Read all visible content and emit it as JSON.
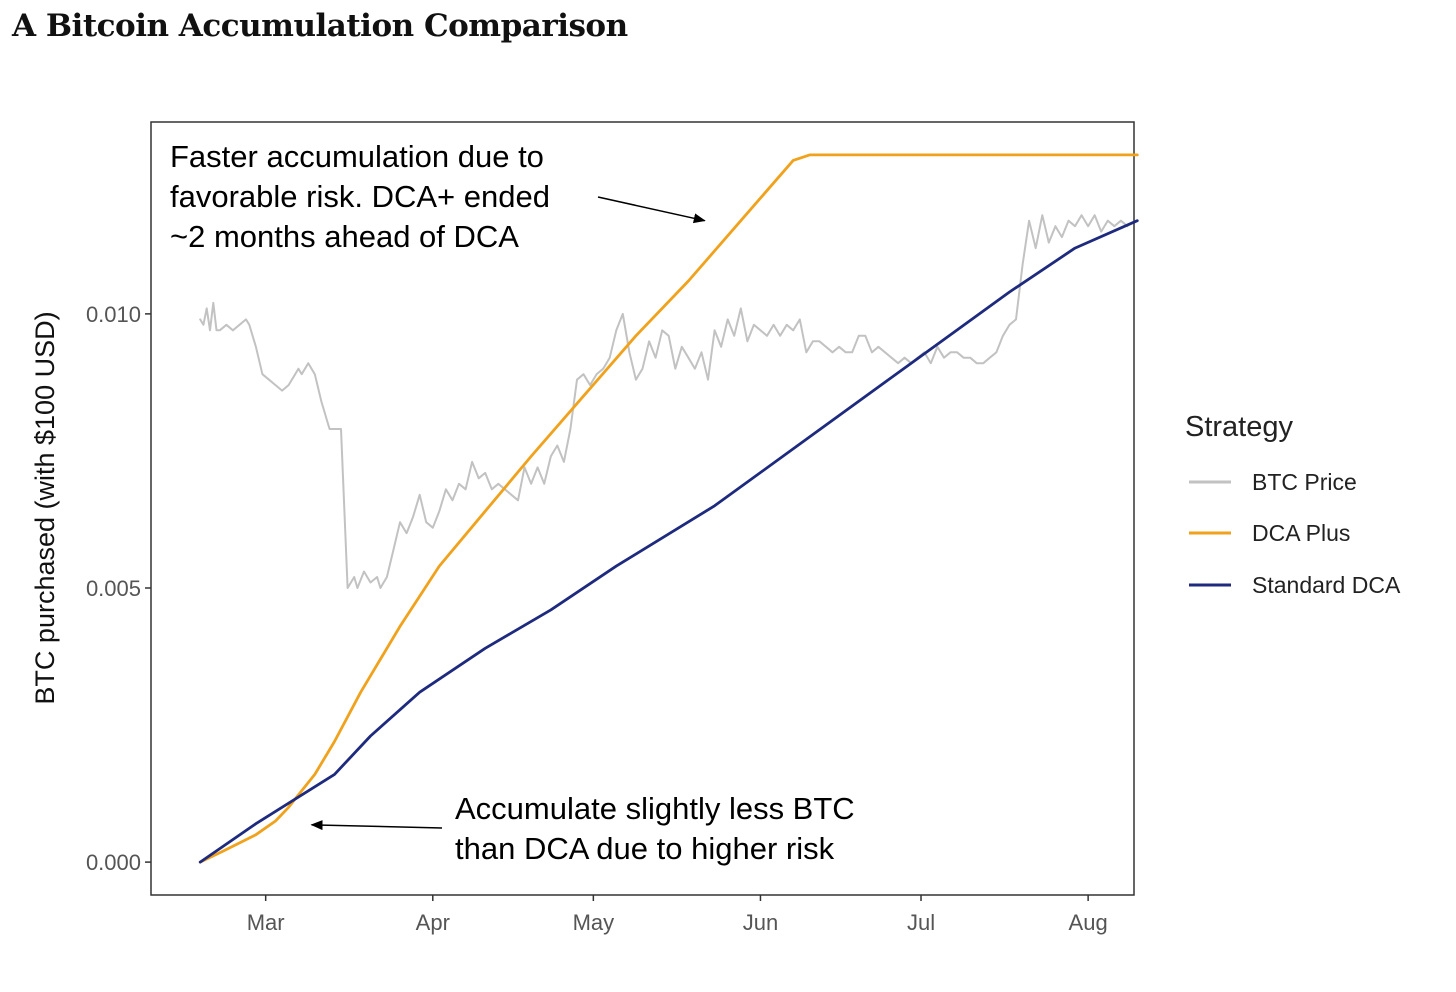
{
  "title": "A Bitcoin Accumulation Comparison",
  "chart_data": {
    "type": "line",
    "xlabel": "",
    "ylabel": "BTC purchased (with $100 USD)",
    "xlim": [
      -12,
      288
    ],
    "ylim": [
      -0.0006,
      0.0135
    ],
    "x_ticks": [
      {
        "value": 23,
        "label": "Mar"
      },
      {
        "value": 74,
        "label": "Apr"
      },
      {
        "value": 123,
        "label": "May"
      },
      {
        "value": 174,
        "label": "Jun"
      },
      {
        "value": 223,
        "label": "Jul"
      },
      {
        "value": 274,
        "label": "Aug"
      }
    ],
    "y_ticks": [
      {
        "value": 0,
        "label": "0.000"
      },
      {
        "value": 0.005,
        "label": "0.005"
      },
      {
        "value": 0.01,
        "label": "0.010"
      }
    ],
    "legend": {
      "title": "Strategy",
      "position": "right",
      "entries": [
        {
          "name": "BTC Price",
          "color": "#c2c2c2"
        },
        {
          "name": "DCA Plus",
          "color": "#f0a21c"
        },
        {
          "name": "Standard DCA",
          "color": "#1d2a7e"
        }
      ]
    },
    "series": [
      {
        "name": "BTC Price",
        "color": "#c2c2c2",
        "x": [
          3,
          4,
          5,
          6,
          7,
          8,
          9,
          11,
          13,
          15,
          17,
          18,
          20,
          22,
          24,
          26,
          28,
          30,
          32,
          33,
          34,
          36,
          38,
          40,
          41,
          42,
          42.5,
          43,
          44,
          45,
          46,
          48,
          50,
          51,
          53,
          55,
          57,
          58,
          60,
          62,
          64,
          66,
          68,
          70,
          72,
          74,
          76,
          78,
          80,
          82,
          84,
          86,
          88,
          90,
          92,
          94,
          96,
          98,
          100,
          102,
          104,
          106,
          108,
          110,
          112,
          114,
          116,
          118,
          120,
          122,
          124,
          126,
          128,
          130,
          132,
          134,
          136,
          138,
          140,
          142,
          144,
          146,
          148,
          150,
          152,
          154,
          156,
          158,
          160,
          162,
          164,
          166,
          168,
          170,
          172,
          174,
          176,
          178,
          180,
          182,
          184,
          186,
          188,
          190,
          192,
          194,
          196,
          198,
          200,
          202,
          204,
          206,
          208,
          210,
          212,
          214,
          216,
          218,
          220,
          222,
          224,
          226,
          228,
          230,
          232,
          234,
          236,
          238,
          240,
          242,
          244,
          246,
          248,
          250,
          252,
          254,
          256,
          258,
          260,
          262,
          264,
          266,
          268,
          270,
          272,
          274,
          276,
          278,
          280,
          282,
          284,
          286
        ],
        "values": [
          0.0099,
          0.0098,
          0.0101,
          0.0097,
          0.0102,
          0.0097,
          0.0097,
          0.0098,
          0.0097,
          0.0098,
          0.0099,
          0.0098,
          0.0094,
          0.0089,
          0.0088,
          0.0087,
          0.0086,
          0.0087,
          0.0089,
          0.009,
          0.0089,
          0.0091,
          0.0089,
          0.0084,
          0.0082,
          0.008,
          0.0079,
          0.0079,
          0.0079,
          0.0079,
          0.0079,
          0.005,
          0.0052,
          0.005,
          0.0053,
          0.0051,
          0.0052,
          0.005,
          0.0052,
          0.0057,
          0.0062,
          0.006,
          0.0063,
          0.0067,
          0.0062,
          0.0061,
          0.0064,
          0.0068,
          0.0066,
          0.0069,
          0.0068,
          0.0073,
          0.007,
          0.0071,
          0.0068,
          0.0069,
          0.0068,
          0.0067,
          0.0066,
          0.0072,
          0.0069,
          0.0072,
          0.0069,
          0.0074,
          0.0076,
          0.0073,
          0.0079,
          0.0088,
          0.0089,
          0.0087,
          0.0089,
          0.009,
          0.0092,
          0.0097,
          0.01,
          0.0093,
          0.0088,
          0.009,
          0.0095,
          0.0092,
          0.0097,
          0.0096,
          0.009,
          0.0094,
          0.0092,
          0.009,
          0.0093,
          0.0088,
          0.0097,
          0.0094,
          0.0099,
          0.0096,
          0.0101,
          0.0095,
          0.0098,
          0.0097,
          0.0096,
          0.0098,
          0.0096,
          0.0098,
          0.0097,
          0.0099,
          0.0093,
          0.0095,
          0.0095,
          0.0094,
          0.0093,
          0.0094,
          0.0093,
          0.0093,
          0.0096,
          0.0096,
          0.0093,
          0.0094,
          0.0093,
          0.0092,
          0.0091,
          0.0092,
          0.0091,
          0.0092,
          0.0093,
          0.0091,
          0.0094,
          0.0092,
          0.0093,
          0.0093,
          0.0092,
          0.0092,
          0.0091,
          0.0091,
          0.0092,
          0.0093,
          0.0096,
          0.0098,
          0.0099,
          0.0109,
          0.0117,
          0.0112,
          0.0118,
          0.0113,
          0.0116,
          0.0114,
          0.0117,
          0.0116,
          0.0118,
          0.0116,
          0.0118,
          0.0115,
          0.0117,
          0.0116,
          0.0117,
          0.0116
        ],
        "sampled": true
      },
      {
        "name": "DCA Plus",
        "color": "#f0a21c",
        "x": [
          3,
          10,
          20,
          26,
          30,
          34,
          38,
          44,
          52,
          64,
          76,
          90,
          104,
          120,
          136,
          152,
          168,
          184,
          189,
          210,
          240,
          270,
          289
        ],
        "values": [
          0.0,
          0.0002,
          0.0005,
          0.00075,
          0.001,
          0.0013,
          0.0016,
          0.0022,
          0.0031,
          0.0043,
          0.0054,
          0.0064,
          0.0074,
          0.0085,
          0.0096,
          0.0106,
          0.0117,
          0.0128,
          0.0129,
          0.0129,
          0.0129,
          0.0129,
          0.0129
        ]
      },
      {
        "name": "Standard DCA",
        "color": "#1d2a7e",
        "x": [
          3,
          20,
          44,
          55,
          70,
          90,
          110,
          130,
          160,
          190,
          220,
          250,
          270,
          289
        ],
        "values": [
          0.0,
          0.0007,
          0.0016,
          0.0023,
          0.0031,
          0.0039,
          0.0046,
          0.0054,
          0.0065,
          0.0078,
          0.0091,
          0.0104,
          0.0112,
          0.0117
        ]
      }
    ],
    "annotations": [
      {
        "lines": [
          "Faster accumulation due to",
          "favorable risk. DCA+ ended",
          "~2 months ahead of DCA"
        ],
        "arrow_to": [
          157,
          0.0117
        ]
      },
      {
        "lines": [
          "Accumulate slightly less BTC",
          "than DCA due to higher risk"
        ],
        "arrow_to": [
          37,
          0.00068
        ]
      }
    ]
  }
}
